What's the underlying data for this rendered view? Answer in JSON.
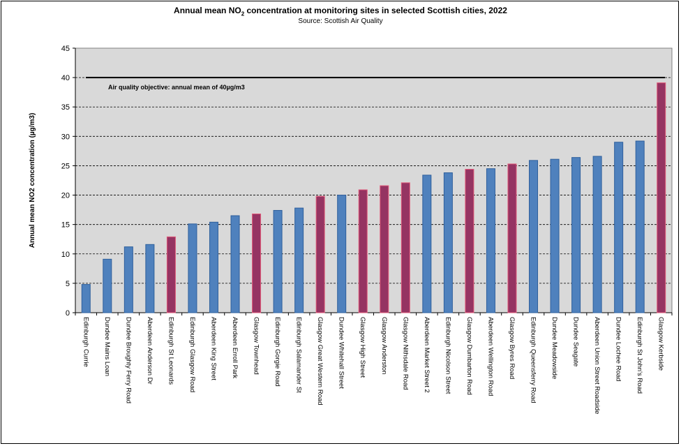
{
  "chart_data": {
    "type": "bar",
    "title_prefix": "Annual mean NO",
    "title_subscript": "2",
    "title_suffix": " concentration at monitoring sites in selected Scottish cities, 2022",
    "subtitle": "Source: Scottish Air Quality",
    "xlabel": "",
    "ylabel": "Annual mean NO2 concentration (µg/m3)",
    "ylim": [
      0,
      45
    ],
    "yticks": [
      0,
      5,
      10,
      15,
      20,
      25,
      30,
      35,
      40,
      45
    ],
    "grid": true,
    "categories": [
      "Edinburgh Currie",
      "Dundee Mains Loan",
      "Dundee Broughty Ferry Road",
      "Aberdeen Anderson Dr",
      "Edinburgh St Leonards",
      "Edinburgh Glasgow Road",
      "Aberdeen King Street",
      "Aberdeen Erroll Park",
      "Glasgow Townhead",
      "Edinburgh Gorgie Road",
      "Edinburgh Salamander St",
      "Glasgow Great Western Road",
      "Dundee Whitehall Street",
      "Glasgow High Street",
      "Glasgow Anderston",
      "Glasgow Nithsdale Road",
      "Aberdeen Market Street 2",
      "Edinburgh Nicolson Street",
      "Glasgow Dumbarton Road",
      "Aberdeen Wellington Road",
      "Glasgow Byres Road",
      "Edinburgh Queensferry Road",
      "Dundee Meadowside",
      "Dundee Seagate",
      "Aberdeen Union Street Roadside",
      "Dundee Lochee Road",
      "Edinburgh St John's Road",
      "Glasgow Kerbside"
    ],
    "values": [
      4.8,
      9.1,
      11.2,
      11.6,
      12.9,
      15.1,
      15.4,
      16.5,
      16.8,
      17.4,
      17.8,
      19.8,
      20.0,
      20.9,
      21.6,
      22.1,
      23.4,
      23.8,
      24.4,
      24.5,
      25.3,
      25.9,
      26.1,
      26.4,
      26.6,
      29.0,
      29.2,
      39.1
    ],
    "colors": [
      "blue",
      "blue",
      "blue",
      "blue",
      "purple",
      "blue",
      "blue",
      "blue",
      "purple",
      "blue",
      "blue",
      "purple",
      "blue",
      "purple",
      "purple",
      "purple",
      "blue",
      "blue",
      "purple",
      "blue",
      "purple",
      "blue",
      "blue",
      "blue",
      "blue",
      "blue",
      "blue",
      "purple"
    ],
    "palette": {
      "blue": "#4f81bd",
      "blue_border": "#2e5f9c",
      "purple": "#953462",
      "purple_border": "#6d1f45",
      "highlight_outline": "#e05878",
      "plot_bg": "#d9d9d9",
      "objective_line": "#000000"
    },
    "objective": {
      "value": 40,
      "label": "Air quality objective: annual mean of 40µg/m3"
    }
  }
}
